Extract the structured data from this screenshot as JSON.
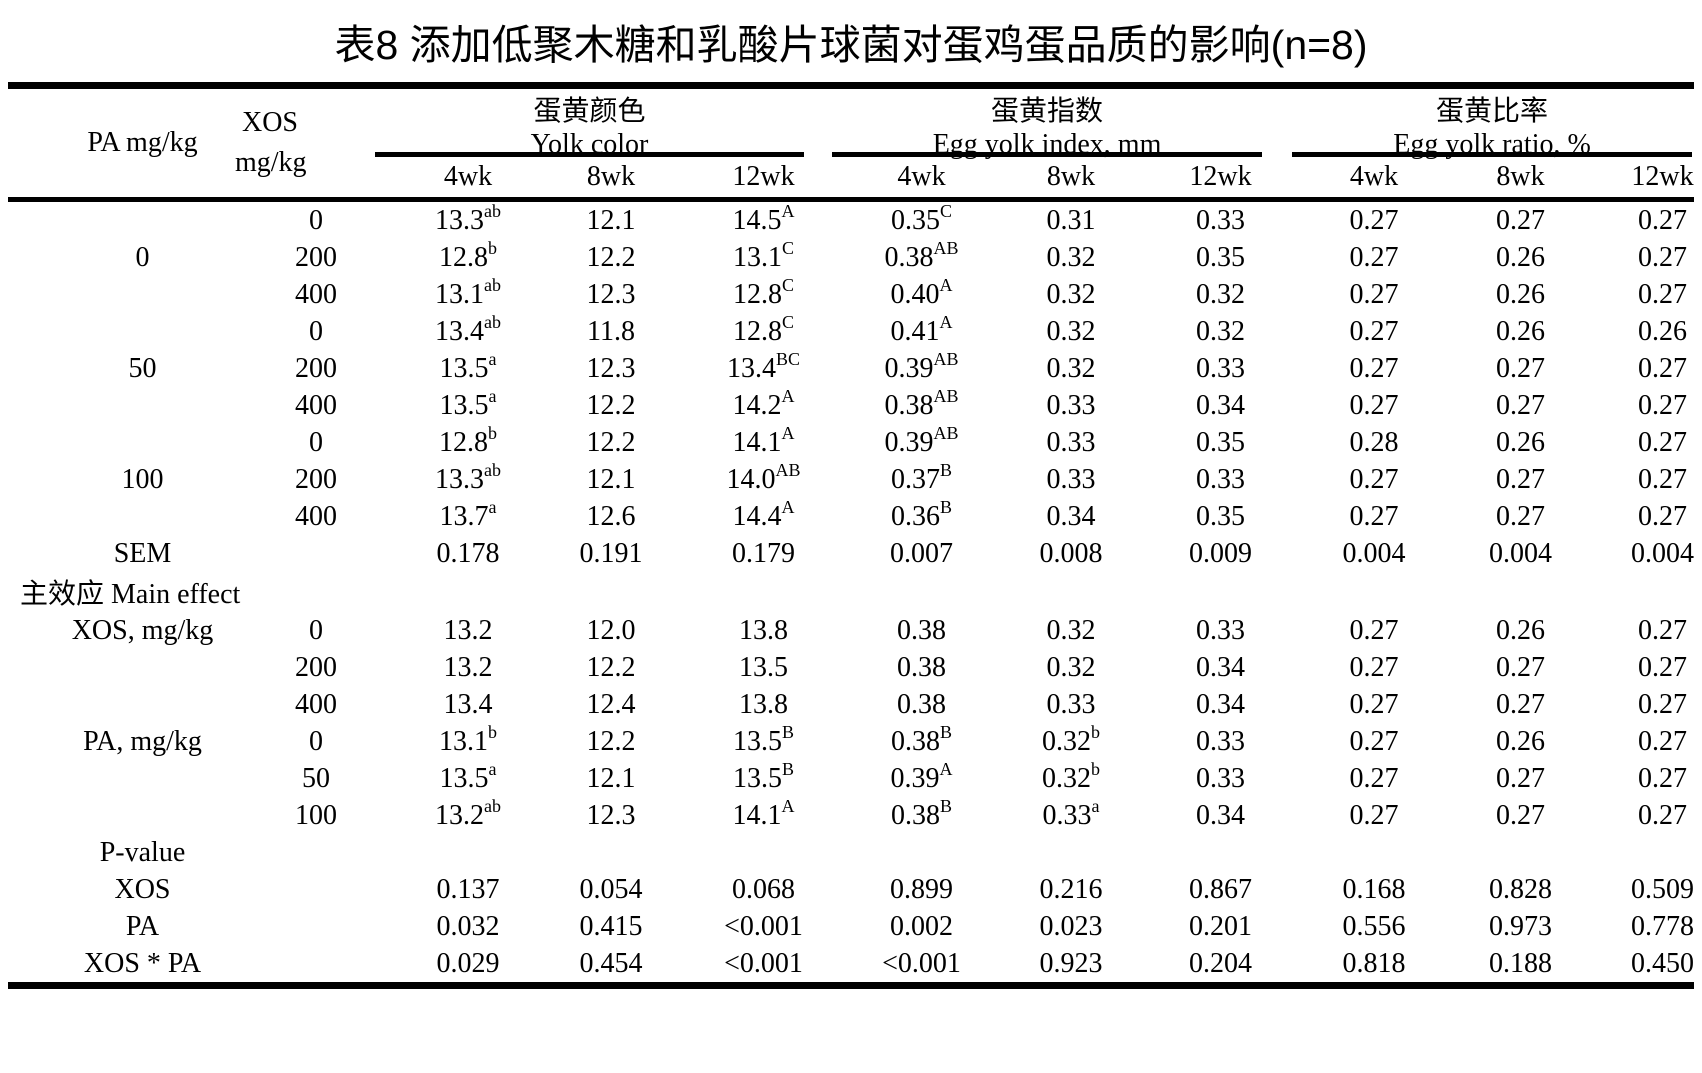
{
  "title": "表8 添加低聚木糖和乳酸片球菌对蛋鸡蛋品质的影响(n=8)",
  "header": {
    "pa": "PA mg/kg",
    "xos_line1": "XOS",
    "xos_line2": "mg/kg",
    "groups": [
      {
        "zh": "蛋黄颜色",
        "en": "Yolk color"
      },
      {
        "zh": "蛋黄指数",
        "en": "Egg yolk index, mm"
      },
      {
        "zh": "蛋黄比率",
        "en": "Egg yolk ratio, %"
      }
    ],
    "weeks": [
      "4wk",
      "8wk",
      "12wk"
    ]
  },
  "rows": [
    {
      "pa": "",
      "xos": "0",
      "cells": [
        "13.3^ab",
        "12.1",
        "14.5^A",
        "0.35^C",
        "0.31",
        "0.33",
        "0.27",
        "0.27",
        "0.27"
      ]
    },
    {
      "pa": "0",
      "xos": "200",
      "cells": [
        "12.8^b",
        "12.2",
        "13.1^C",
        "0.38^AB",
        "0.32",
        "0.35",
        "0.27",
        "0.26",
        "0.27"
      ]
    },
    {
      "pa": "",
      "xos": "400",
      "cells": [
        "13.1^ab",
        "12.3",
        "12.8^C",
        "0.40^A",
        "0.32",
        "0.32",
        "0.27",
        "0.26",
        "0.27"
      ]
    },
    {
      "pa": "",
      "xos": "0",
      "cells": [
        "13.4^ab",
        "11.8",
        "12.8^C",
        "0.41^A",
        "0.32",
        "0.32",
        "0.27",
        "0.26",
        "0.26"
      ]
    },
    {
      "pa": "50",
      "xos": "200",
      "cells": [
        "13.5^a",
        "12.3",
        "13.4^BC",
        "0.39^AB",
        "0.32",
        "0.33",
        "0.27",
        "0.27",
        "0.27"
      ]
    },
    {
      "pa": "",
      "xos": "400",
      "cells": [
        "13.5^a",
        "12.2",
        "14.2^A",
        "0.38^AB",
        "0.33",
        "0.34",
        "0.27",
        "0.27",
        "0.27"
      ]
    },
    {
      "pa": "",
      "xos": "0",
      "cells": [
        "12.8^b",
        "12.2",
        "14.1^A",
        "0.39^AB",
        "0.33",
        "0.35",
        "0.28",
        "0.26",
        "0.27"
      ]
    },
    {
      "pa": "100",
      "xos": "200",
      "cells": [
        "13.3^ab",
        "12.1",
        "14.0^AB",
        "0.37^B",
        "0.33",
        "0.33",
        "0.27",
        "0.27",
        "0.27"
      ]
    },
    {
      "pa": "",
      "xos": "400",
      "cells": [
        "13.7^a",
        "12.6",
        "14.4^A",
        "0.36^B",
        "0.34",
        "0.35",
        "0.27",
        "0.27",
        "0.27"
      ]
    },
    {
      "pa": "SEM",
      "xos": "",
      "cells": [
        "0.178",
        "0.191",
        "0.179",
        "0.007",
        "0.008",
        "0.009",
        "0.004",
        "0.004",
        "0.004"
      ]
    },
    {
      "type": "section",
      "label": "主效应 Main effect"
    },
    {
      "pa": "XOS, mg/kg",
      "xos": "0",
      "cells": [
        "13.2",
        "12.0",
        "13.8",
        "0.38",
        "0.32",
        "0.33",
        "0.27",
        "0.26",
        "0.27"
      ]
    },
    {
      "pa": "",
      "xos": "200",
      "cells": [
        "13.2",
        "12.2",
        "13.5",
        "0.38",
        "0.32",
        "0.34",
        "0.27",
        "0.27",
        "0.27"
      ]
    },
    {
      "pa": "",
      "xos": "400",
      "cells": [
        "13.4",
        "12.4",
        "13.8",
        "0.38",
        "0.33",
        "0.34",
        "0.27",
        "0.27",
        "0.27"
      ]
    },
    {
      "pa": "PA, mg/kg",
      "xos": "0",
      "cells": [
        "13.1^b",
        "12.2",
        "13.5^B",
        "0.38^B",
        "0.32^b",
        "0.33",
        "0.27",
        "0.26",
        "0.27"
      ]
    },
    {
      "pa": "",
      "xos": "50",
      "cells": [
        "13.5^a",
        "12.1",
        "13.5^B",
        "0.39^A",
        "0.32^b",
        "0.33",
        "0.27",
        "0.27",
        "0.27"
      ]
    },
    {
      "pa": "",
      "xos": "100",
      "cells": [
        "13.2^ab",
        "12.3",
        "14.1^A",
        "0.38^B",
        "0.33^a",
        "0.34",
        "0.27",
        "0.27",
        "0.27"
      ]
    },
    {
      "type": "label",
      "label": "P-value"
    },
    {
      "pa": "XOS",
      "xos": "",
      "cells": [
        "0.137",
        "0.054",
        "0.068",
        "0.899",
        "0.216",
        "0.867",
        "0.168",
        "0.828",
        "0.509"
      ]
    },
    {
      "pa": "PA",
      "xos": "",
      "cells": [
        "0.032",
        "0.415",
        "<0.001",
        "0.002",
        "0.023",
        "0.201",
        "0.556",
        "0.973",
        "0.778"
      ]
    },
    {
      "pa": "XOS * PA",
      "xos": "",
      "cells": [
        "0.029",
        "0.454",
        "<0.001",
        "<0.001",
        "0.923",
        "0.204",
        "0.818",
        "0.188",
        "0.450"
      ]
    }
  ]
}
